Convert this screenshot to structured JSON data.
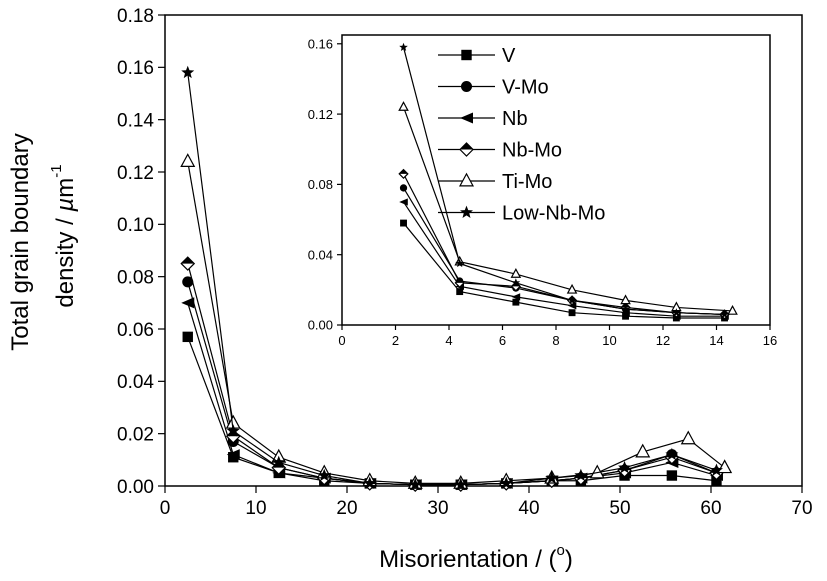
{
  "chart_data": [
    {
      "type": "line",
      "xlabel": "Misorientation / (",
      "xlabel_sup": "o",
      "xlabel_tail": ")",
      "ylabel_line1": "Total grain boundary",
      "ylabel_line2": "density / ",
      "ylabel_mu": "µ",
      "ylabel_unit": "m",
      "ylabel_sup": "-1",
      "xlim": [
        0,
        70
      ],
      "ylim": [
        0,
        0.18
      ],
      "xticks": [
        "0",
        "10",
        "20",
        "30",
        "40",
        "50",
        "60",
        "70"
      ],
      "yticks": [
        "0.00",
        "0.02",
        "0.04",
        "0.06",
        "0.08",
        "0.10",
        "0.12",
        "0.14",
        "0.16",
        "0.18"
      ],
      "grid": false,
      "series": [
        {
          "name": "V",
          "marker": "square-filled",
          "x": [
            2.5,
            7.5,
            12.5,
            17.5,
            22.5,
            27.5,
            32.5,
            37.5,
            42.5,
            45.7,
            50.5,
            55.7,
            60.6
          ],
          "y": [
            0.057,
            0.011,
            0.005,
            0.002,
            0.001,
            0.0005,
            0.0005,
            0.001,
            0.002,
            0.002,
            0.004,
            0.004,
            0.002
          ]
        },
        {
          "name": "V-Mo",
          "marker": "circle-filled",
          "x": [
            2.5,
            7.5,
            12.5,
            17.5,
            22.5,
            27.5,
            32.5,
            37.5,
            42.5,
            45.7,
            50.5,
            55.7,
            60.6
          ],
          "y": [
            0.078,
            0.017,
            0.007,
            0.003,
            0.001,
            0.0005,
            0.0005,
            0.001,
            0.002,
            0.003,
            0.006,
            0.012,
            0.005
          ]
        },
        {
          "name": "Nb",
          "marker": "triangle-left-filled",
          "x": [
            2.5,
            7.5,
            12.5,
            17.5,
            22.5,
            27.5,
            32.5,
            37.5,
            42.5,
            45.7,
            50.5,
            55.7,
            60.6
          ],
          "y": [
            0.07,
            0.012,
            0.005,
            0.003,
            0.001,
            0.0005,
            0.0005,
            0.001,
            0.002,
            0.003,
            0.005,
            0.009,
            0.004
          ]
        },
        {
          "name": "Nb-Mo",
          "marker": "diamond-halffilled",
          "x": [
            2.5,
            7.5,
            12.5,
            17.5,
            22.5,
            27.5,
            32.5,
            37.5,
            42.5,
            45.7,
            50.5,
            55.7,
            60.6
          ],
          "y": [
            0.085,
            0.019,
            0.007,
            0.003,
            0.001,
            0.0005,
            0.0005,
            0.001,
            0.002,
            0.003,
            0.006,
            0.011,
            0.005
          ]
        },
        {
          "name": "Ti-Mo",
          "marker": "triangle-up-open",
          "x": [
            2.5,
            7.5,
            12.5,
            17.5,
            22.5,
            27.5,
            32.5,
            37.5,
            42.5,
            47.5,
            52.5,
            57.5,
            61.5
          ],
          "y": [
            0.124,
            0.024,
            0.011,
            0.005,
            0.002,
            0.001,
            0.001,
            0.002,
            0.003,
            0.005,
            0.013,
            0.018,
            0.007
          ]
        },
        {
          "name": "Low-Nb-Mo",
          "marker": "star-filled",
          "x": [
            2.5,
            7.5,
            12.5,
            17.5,
            22.5,
            27.5,
            32.5,
            37.5,
            42.5,
            45.7,
            50.5,
            55.7,
            60.6
          ],
          "y": [
            0.158,
            0.021,
            0.009,
            0.004,
            0.001,
            0.0005,
            0.0005,
            0.001,
            0.003,
            0.004,
            0.007,
            0.012,
            0.006
          ]
        }
      ]
    },
    {
      "type": "line",
      "role": "inset",
      "xlim": [
        0,
        16
      ],
      "ylim": [
        0,
        0.165
      ],
      "xticks": [
        "0",
        "2",
        "4",
        "6",
        "8",
        "10",
        "12",
        "14",
        "16"
      ],
      "yticks": [
        "0.00",
        "0.04",
        "0.08",
        "0.12",
        "0.16"
      ],
      "legend_position": "upper-center",
      "series": [
        {
          "name": "V",
          "marker": "square-filled",
          "x": [
            2.3,
            4.4,
            6.5,
            8.6,
            10.6,
            12.5,
            14.3
          ],
          "y": [
            0.058,
            0.019,
            0.013,
            0.007,
            0.005,
            0.004,
            0.004
          ]
        },
        {
          "name": "V-Mo",
          "marker": "circle-filled",
          "x": [
            2.3,
            4.4,
            6.5,
            8.6,
            10.6,
            12.5,
            14.3
          ],
          "y": [
            0.078,
            0.025,
            0.021,
            0.014,
            0.009,
            0.007,
            0.006
          ]
        },
        {
          "name": "Nb",
          "marker": "triangle-left-filled",
          "x": [
            2.3,
            4.4,
            6.5,
            8.6,
            10.6,
            12.5,
            14.3
          ],
          "y": [
            0.07,
            0.022,
            0.016,
            0.011,
            0.007,
            0.005,
            0.005
          ]
        },
        {
          "name": "Nb-Mo",
          "marker": "diamond-halffilled",
          "x": [
            2.3,
            4.4,
            6.5,
            8.6,
            10.6,
            12.5,
            14.3
          ],
          "y": [
            0.086,
            0.024,
            0.022,
            0.014,
            0.01,
            0.007,
            0.006
          ]
        },
        {
          "name": "Ti-Mo",
          "marker": "triangle-up-open",
          "x": [
            2.3,
            4.4,
            6.5,
            8.6,
            10.6,
            12.5,
            14.6
          ],
          "y": [
            0.124,
            0.036,
            0.029,
            0.02,
            0.014,
            0.01,
            0.008
          ]
        },
        {
          "name": "Low-Nb-Mo",
          "marker": "star-filled",
          "x": [
            2.3,
            4.4,
            6.5,
            8.6,
            10.6,
            12.5,
            14.3
          ],
          "y": [
            0.158,
            0.035,
            0.024,
            0.014,
            0.009,
            0.007,
            0.006
          ]
        }
      ]
    }
  ]
}
